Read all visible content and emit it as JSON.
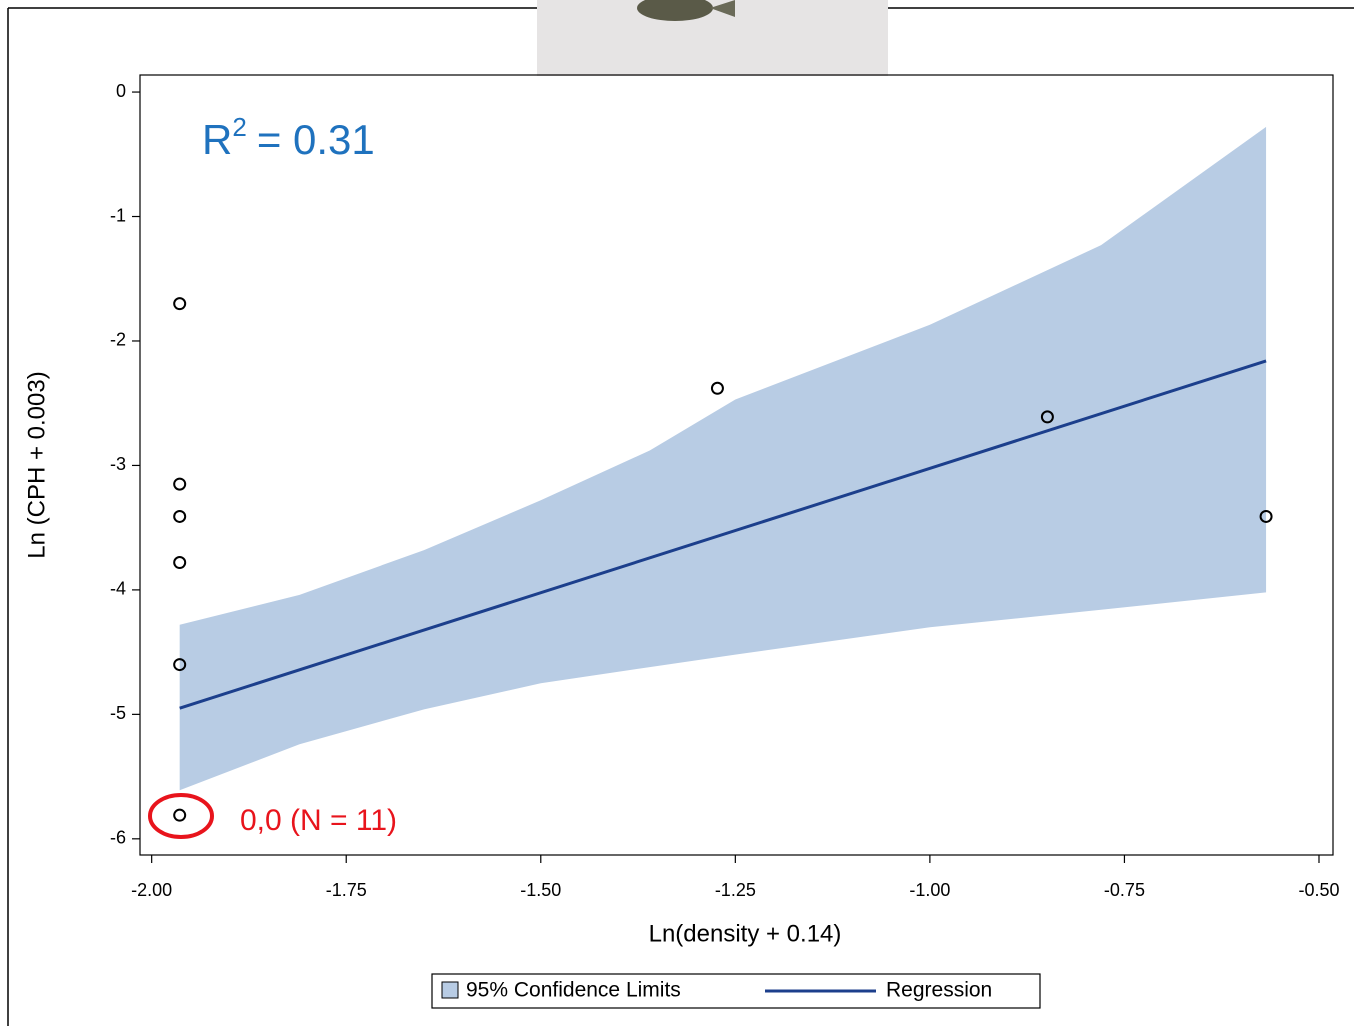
{
  "chart_data": {
    "type": "scatter",
    "x_label": "Ln(density + 0.14)",
    "y_label": "Ln (CPH + 0.003)",
    "xlim": [
      -2.015,
      -0.482
    ],
    "ylim": [
      -6.13,
      0.137
    ],
    "xticks": [
      {
        "value": -2.0,
        "label": "-2.00"
      },
      {
        "value": -1.75,
        "label": "-1.75"
      },
      {
        "value": -1.5,
        "label": "-1.50"
      },
      {
        "value": -1.25,
        "label": "-1.25"
      },
      {
        "value": -1.0,
        "label": "-1.00"
      },
      {
        "value": -0.75,
        "label": "-0.75"
      },
      {
        "value": -0.5,
        "label": "-0.50"
      }
    ],
    "yticks": [
      0,
      -1,
      -2,
      -3,
      -4,
      -5,
      -6
    ],
    "series": [
      {
        "name": "95% Confidence Limits",
        "color": "#b8cce4",
        "x": [
          -1.964,
          -1.81,
          -1.65,
          -1.5,
          -1.36,
          -1.25,
          -1.0,
          -0.78,
          -0.568
        ],
        "upper": [
          -4.28,
          -4.04,
          -3.68,
          -3.28,
          -2.88,
          -2.47,
          -1.87,
          -1.23,
          -0.28
        ],
        "lower": [
          -5.61,
          -5.24,
          -4.96,
          -4.75,
          -4.62,
          -4.52,
          -4.3,
          -4.16,
          -4.02
        ]
      },
      {
        "name": "Regression",
        "color": "#1c3f8c",
        "x": [
          -1.964,
          -0.568
        ],
        "values": [
          -4.95,
          -2.16
        ]
      }
    ],
    "points": {
      "x": [
        -1.964,
        -1.964,
        -1.964,
        -1.964,
        -1.964,
        -1.964,
        -1.273,
        -0.849,
        -0.568
      ],
      "values": [
        -1.7,
        -3.15,
        -3.41,
        -3.78,
        -4.6,
        -5.81,
        -2.38,
        -2.61,
        -3.41
      ]
    },
    "annotations": {
      "r2_base": "R",
      "r2_sup": "2",
      "r2_rest": "= 0.31",
      "zero_note": "0,0 (N = 11)"
    }
  }
}
